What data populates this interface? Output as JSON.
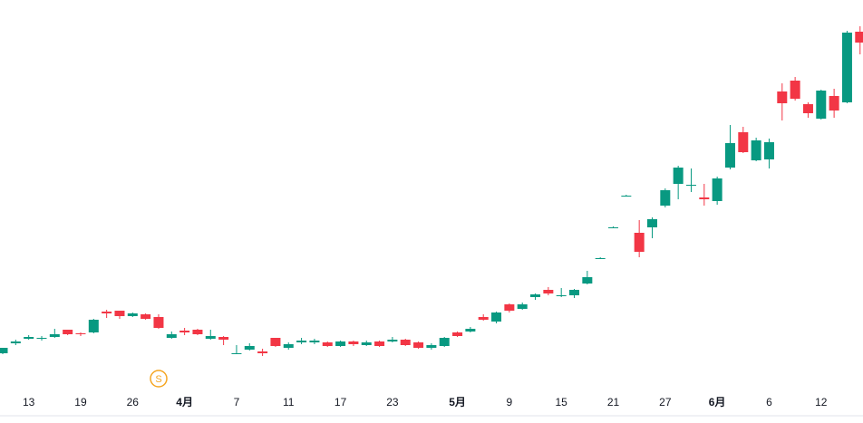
{
  "chart_data": {
    "type": "candlestick",
    "categories": [
      null,
      null,
      "13",
      null,
      null,
      null,
      "19",
      null,
      null,
      null,
      "26",
      null,
      null,
      null,
      "4月",
      null,
      null,
      null,
      "7",
      null,
      null,
      null,
      "11",
      null,
      null,
      null,
      "17",
      null,
      null,
      null,
      "23",
      null,
      null,
      null,
      null,
      "5月",
      null,
      null,
      null,
      "9",
      null,
      null,
      null,
      "15",
      null,
      null,
      null,
      "21",
      null,
      null,
      null,
      "27",
      null,
      null,
      null,
      "6月",
      null,
      null,
      null,
      "6",
      null,
      null,
      null,
      "12",
      null,
      null,
      null
    ],
    "open": [
      80,
      91,
      96,
      96,
      98,
      106,
      102,
      103,
      126,
      127,
      121,
      123,
      120,
      97,
      105,
      106,
      96,
      98,
      79,
      84,
      82,
      97,
      86,
      92,
      92,
      92,
      88,
      93,
      89,
      93,
      93,
      95,
      92,
      86,
      88,
      103,
      104,
      120,
      115,
      134,
      129,
      142,
      150,
      143,
      144,
      157,
      184,
      218,
      253,
      213,
      219,
      243,
      267,
      265,
      252,
      248,
      285,
      324,
      293,
      294,
      369,
      381,
      355,
      339,
      364,
      357,
      435
    ],
    "high": [
      86,
      95,
      100,
      99,
      107,
      106,
      103,
      118,
      128,
      127,
      125,
      124,
      123,
      104,
      108,
      107,
      106,
      99,
      89,
      91,
      85,
      97,
      92,
      97,
      96,
      93,
      94,
      94,
      94,
      94,
      98,
      96,
      93,
      91,
      98,
      104,
      109,
      123,
      126,
      135,
      136,
      146,
      153,
      152,
      151,
      171,
      186,
      220,
      255,
      227,
      230,
      262,
      287,
      284,
      267,
      275,
      332,
      330,
      318,
      317,
      378,
      385,
      357,
      371,
      372,
      436,
      441
    ],
    "low": [
      79,
      89,
      95,
      94,
      97,
      100,
      99,
      102,
      119,
      118,
      120,
      117,
      107,
      96,
      100,
      100,
      95,
      89,
      79,
      83,
      77,
      87,
      84,
      90,
      90,
      87,
      87,
      88,
      88,
      87,
      92,
      88,
      85,
      84,
      87,
      98,
      103,
      116,
      113,
      125,
      128,
      139,
      144,
      142,
      141,
      156,
      184,
      218,
      253,
      186,
      207,
      241,
      250,
      258,
      243,
      244,
      283,
      301,
      292,
      284,
      337,
      359,
      340,
      338,
      340,
      356,
      410
    ],
    "close": [
      86,
      93,
      98,
      97,
      101,
      101,
      101,
      117,
      124,
      121,
      124,
      118,
      108,
      101,
      103,
      101,
      99,
      95,
      80,
      88,
      80,
      88,
      90,
      94,
      94,
      88,
      93,
      90,
      92,
      88,
      95,
      89,
      86,
      89,
      97,
      99,
      107,
      117,
      125,
      127,
      134,
      145,
      146,
      144,
      150,
      164,
      185,
      219,
      254,
      192,
      228,
      260,
      285,
      266,
      250,
      273,
      312,
      302,
      315,
      313,
      356,
      361,
      345,
      370,
      348,
      434,
      423
    ],
    "up_color": "#089981",
    "down_color": "#f23645",
    "ylim": [
      0,
      470
    ],
    "event_marker": "S"
  }
}
